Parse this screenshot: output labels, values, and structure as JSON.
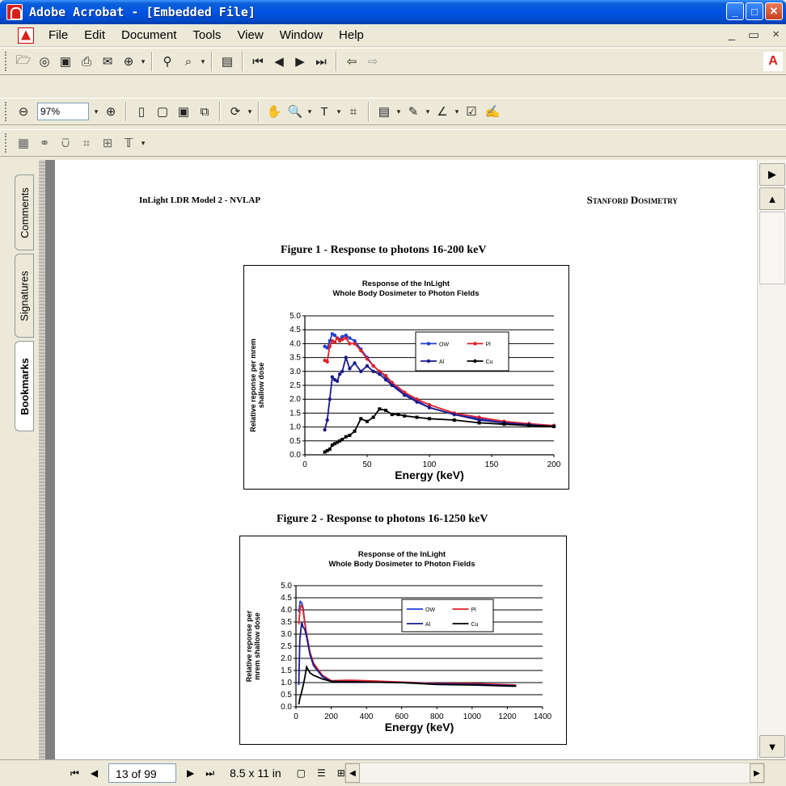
{
  "window": {
    "title": "Adobe Acrobat - [Embedded File]",
    "minimize": "_",
    "maximize": "□",
    "close": "✕"
  },
  "menu": {
    "items": [
      "File",
      "Edit",
      "Document",
      "Tools",
      "View",
      "Window",
      "Help"
    ],
    "mdi": [
      "_",
      "▭",
      "×"
    ]
  },
  "toolbar": {
    "zoom_value": "97%",
    "adobe_logo": "A"
  },
  "nav_tabs": [
    "Comments",
    "Signatures",
    "Bookmarks"
  ],
  "document": {
    "header_left": "InLight LDR Model 2 - NVLAP",
    "header_right": "Stanford Dosimetry",
    "figure1_caption": "Figure 1 - Response to photons 16-200 keV",
    "figure2_caption": "Figure 2 - Response to photons 16-1250 keV"
  },
  "status": {
    "page_indicator": "13 of 99",
    "page_size": "8.5 x 11 in"
  },
  "chart_data": [
    {
      "type": "line",
      "title": "Response of the InLight\nWhole Body Dosimeter to Photon Fields",
      "title_lines": [
        "Response of the InLight",
        "Whole Body Dosimeter to Photon Fields"
      ],
      "xlabel": "Energy (keV)",
      "ylabel_lines": [
        "Relative reponse per mrem",
        "shallow dose"
      ],
      "xlim": [
        0,
        200
      ],
      "ylim": [
        0,
        5
      ],
      "xticks": [
        0,
        50,
        100,
        150,
        200
      ],
      "yticks": [
        "0.0",
        "0.5",
        "1.0",
        "1.5",
        "2.0",
        "2.5",
        "3.0",
        "3.5",
        "4.0",
        "4.5",
        "5.0"
      ],
      "grid": "horizontal",
      "legend_position": "top-right",
      "markers": true,
      "series": [
        {
          "name": "OW",
          "color": "#1f3fd6",
          "points": [
            [
              16,
              3.9
            ],
            [
              18,
              3.85
            ],
            [
              20,
              4.1
            ],
            [
              22,
              4.35
            ],
            [
              24,
              4.3
            ],
            [
              26,
              4.2
            ],
            [
              28,
              4.15
            ],
            [
              30,
              4.25
            ],
            [
              33,
              4.3
            ],
            [
              36,
              4.2
            ],
            [
              40,
              4.1
            ],
            [
              45,
              3.8
            ],
            [
              50,
              3.5
            ],
            [
              55,
              3.2
            ],
            [
              60,
              3.0
            ],
            [
              65,
              2.8
            ],
            [
              70,
              2.55
            ],
            [
              80,
              2.2
            ],
            [
              90,
              1.95
            ],
            [
              100,
              1.7
            ],
            [
              120,
              1.45
            ],
            [
              140,
              1.3
            ],
            [
              160,
              1.2
            ],
            [
              180,
              1.1
            ],
            [
              200,
              1.05
            ]
          ]
        },
        {
          "name": "Pl",
          "color": "#e0202a",
          "points": [
            [
              16,
              3.4
            ],
            [
              18,
              3.35
            ],
            [
              20,
              3.9
            ],
            [
              22,
              4.1
            ],
            [
              24,
              4.05
            ],
            [
              26,
              4.2
            ],
            [
              28,
              4.1
            ],
            [
              30,
              4.15
            ],
            [
              33,
              4.2
            ],
            [
              36,
              4.0
            ],
            [
              40,
              4.0
            ],
            [
              45,
              3.75
            ],
            [
              50,
              3.45
            ],
            [
              55,
              3.2
            ],
            [
              60,
              3.0
            ],
            [
              65,
              2.85
            ],
            [
              70,
              2.6
            ],
            [
              80,
              2.25
            ],
            [
              90,
              2.0
            ],
            [
              100,
              1.8
            ],
            [
              120,
              1.5
            ],
            [
              140,
              1.35
            ],
            [
              160,
              1.2
            ],
            [
              180,
              1.12
            ],
            [
              200,
              1.05
            ]
          ]
        },
        {
          "name": "Al",
          "color": "#1a1a8a",
          "points": [
            [
              16,
              0.9
            ],
            [
              18,
              1.25
            ],
            [
              20,
              2.0
            ],
            [
              22,
              2.8
            ],
            [
              24,
              2.7
            ],
            [
              26,
              2.65
            ],
            [
              28,
              2.9
            ],
            [
              30,
              3.0
            ],
            [
              33,
              3.5
            ],
            [
              36,
              3.1
            ],
            [
              40,
              3.3
            ],
            [
              45,
              3.0
            ],
            [
              50,
              3.2
            ],
            [
              55,
              3.0
            ],
            [
              60,
              2.9
            ],
            [
              65,
              2.7
            ],
            [
              70,
              2.5
            ],
            [
              80,
              2.15
            ],
            [
              90,
              1.9
            ],
            [
              100,
              1.7
            ],
            [
              120,
              1.45
            ],
            [
              140,
              1.25
            ],
            [
              160,
              1.15
            ],
            [
              180,
              1.08
            ],
            [
              200,
              1.02
            ]
          ]
        },
        {
          "name": "Cu",
          "color": "#000000",
          "points": [
            [
              16,
              0.1
            ],
            [
              18,
              0.15
            ],
            [
              20,
              0.2
            ],
            [
              22,
              0.35
            ],
            [
              24,
              0.4
            ],
            [
              26,
              0.45
            ],
            [
              28,
              0.5
            ],
            [
              30,
              0.55
            ],
            [
              33,
              0.65
            ],
            [
              36,
              0.7
            ],
            [
              40,
              0.85
            ],
            [
              45,
              1.3
            ],
            [
              50,
              1.2
            ],
            [
              55,
              1.35
            ],
            [
              60,
              1.65
            ],
            [
              65,
              1.6
            ],
            [
              70,
              1.45
            ],
            [
              75,
              1.45
            ],
            [
              80,
              1.4
            ],
            [
              90,
              1.35
            ],
            [
              100,
              1.3
            ],
            [
              120,
              1.25
            ],
            [
              140,
              1.15
            ],
            [
              160,
              1.1
            ],
            [
              180,
              1.05
            ],
            [
              200,
              1.02
            ]
          ]
        }
      ]
    },
    {
      "type": "line",
      "title": "Response of the InLight\nWhole Body Dosimeter to Photon Fields",
      "title_lines": [
        "Response of the InLight",
        "Whole Body Dosimeter to Photon Fields"
      ],
      "xlabel": "Energy (keV)",
      "ylabel_lines": [
        "Relative reponse per",
        "mrem shallow dose"
      ],
      "xlim": [
        0,
        1400
      ],
      "ylim": [
        0,
        5
      ],
      "xticks": [
        0,
        200,
        400,
        600,
        800,
        1000,
        1200,
        1400
      ],
      "yticks": [
        "0.0",
        "0.5",
        "1.0",
        "1.5",
        "2.0",
        "2.5",
        "3.0",
        "3.5",
        "4.0",
        "4.5",
        "5.0"
      ],
      "grid": "horizontal",
      "legend_position": "top-right",
      "markers": false,
      "series": [
        {
          "name": "OW",
          "color": "#1f3fd6",
          "points": [
            [
              16,
              3.9
            ],
            [
              24,
              4.35
            ],
            [
              33,
              4.3
            ],
            [
              40,
              4.1
            ],
            [
              50,
              3.5
            ],
            [
              60,
              3.0
            ],
            [
              80,
              2.2
            ],
            [
              100,
              1.7
            ],
            [
              150,
              1.25
            ],
            [
              200,
              1.05
            ],
            [
              300,
              1.05
            ],
            [
              400,
              1.05
            ],
            [
              600,
              1.0
            ],
            [
              800,
              0.95
            ],
            [
              1000,
              0.95
            ],
            [
              1250,
              0.88
            ]
          ]
        },
        {
          "name": "Pl",
          "color": "#e0202a",
          "points": [
            [
              16,
              3.4
            ],
            [
              24,
              4.1
            ],
            [
              33,
              4.2
            ],
            [
              40,
              4.0
            ],
            [
              50,
              3.45
            ],
            [
              60,
              3.0
            ],
            [
              80,
              2.25
            ],
            [
              100,
              1.8
            ],
            [
              150,
              1.3
            ],
            [
              200,
              1.08
            ],
            [
              300,
              1.1
            ],
            [
              400,
              1.08
            ],
            [
              600,
              1.02
            ],
            [
              800,
              0.97
            ],
            [
              1000,
              0.96
            ],
            [
              1250,
              0.9
            ]
          ]
        },
        {
          "name": "Al",
          "color": "#1a1a8a",
          "points": [
            [
              16,
              0.9
            ],
            [
              22,
              2.8
            ],
            [
              33,
              3.5
            ],
            [
              40,
              3.3
            ],
            [
              50,
              3.2
            ],
            [
              60,
              2.9
            ],
            [
              80,
              2.15
            ],
            [
              100,
              1.7
            ],
            [
              150,
              1.25
            ],
            [
              200,
              1.05
            ],
            [
              400,
              1.02
            ],
            [
              600,
              1.0
            ],
            [
              800,
              0.95
            ],
            [
              1000,
              0.93
            ],
            [
              1250,
              0.87
            ]
          ]
        },
        {
          "name": "Cu",
          "color": "#000000",
          "points": [
            [
              16,
              0.1
            ],
            [
              22,
              0.35
            ],
            [
              30,
              0.55
            ],
            [
              40,
              0.85
            ],
            [
              50,
              1.2
            ],
            [
              60,
              1.65
            ],
            [
              80,
              1.4
            ],
            [
              100,
              1.3
            ],
            [
              150,
              1.15
            ],
            [
              200,
              1.05
            ],
            [
              400,
              1.02
            ],
            [
              600,
              1.0
            ],
            [
              800,
              0.92
            ],
            [
              1000,
              0.9
            ],
            [
              1250,
              0.85
            ]
          ]
        }
      ]
    }
  ]
}
